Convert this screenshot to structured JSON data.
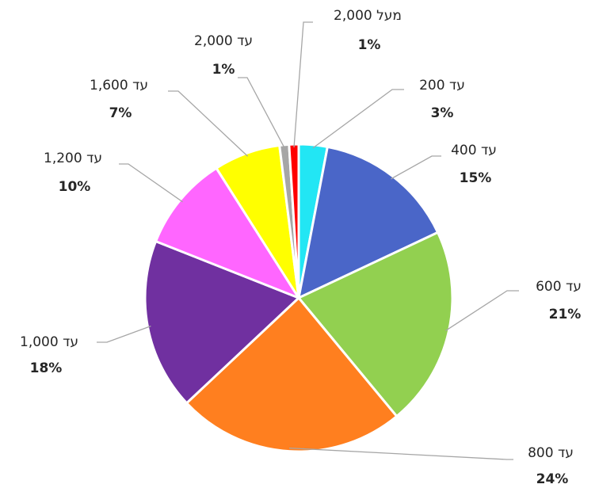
{
  "chart_data": {
    "type": "pie",
    "categories": [
      "עד 200",
      "עד 400",
      "עד 600",
      "עד 800",
      "עד 1,000",
      "עד 1,200",
      "עד 1,600",
      "עד 2,000",
      "מעל 2,000"
    ],
    "values": [
      3,
      15,
      21,
      24,
      18,
      10,
      7,
      1,
      1
    ],
    "value_labels": [
      "3%",
      "15%",
      "21%",
      "24%",
      "18%",
      "10%",
      "7%",
      "1%",
      "1%"
    ],
    "colors": [
      "#22e6f4",
      "#4a66c8",
      "#92d050",
      "#ff7f1f",
      "#7030a0",
      "#ff66ff",
      "#ffff00",
      "#a6a6a6",
      "#ff0000"
    ]
  }
}
